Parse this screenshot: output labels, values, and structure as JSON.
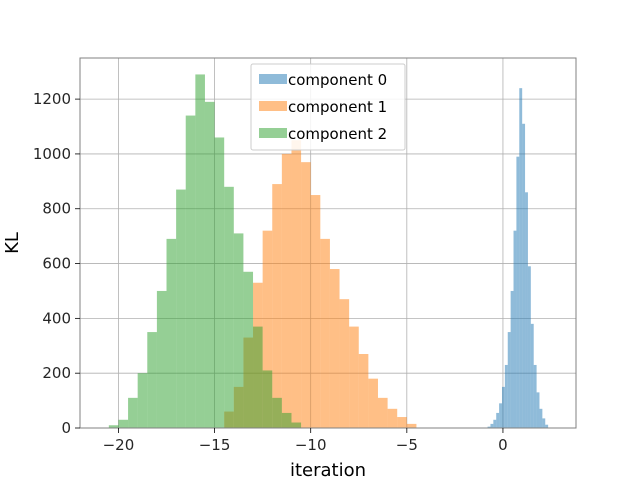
{
  "chart_data": {
    "type": "bar",
    "subtype": "histogram",
    "title": "",
    "xlabel": "iteration",
    "ylabel": "KL",
    "xlim": [
      -22,
      3.8
    ],
    "ylim": [
      0,
      1350
    ],
    "xticks": [
      -20,
      -15,
      -10,
      -5,
      0
    ],
    "yticks": [
      0,
      200,
      400,
      600,
      800,
      1000,
      1200
    ],
    "grid": true,
    "legend_position": "top-center",
    "alpha": 0.5,
    "colors": [
      "#1f77b4",
      "#ff7f0e",
      "#2ca02c"
    ],
    "series": [
      {
        "name": "component 0",
        "bin_width": 0.15,
        "bins": [
          [
            -0.8,
            5
          ],
          [
            -0.65,
            15
          ],
          [
            -0.5,
            30
          ],
          [
            -0.35,
            55
          ],
          [
            -0.2,
            90
          ],
          [
            -0.05,
            150
          ],
          [
            0.1,
            230
          ],
          [
            0.25,
            350
          ],
          [
            0.4,
            500
          ],
          [
            0.55,
            720
          ],
          [
            0.7,
            990
          ],
          [
            0.85,
            1240
          ],
          [
            1.0,
            1110
          ],
          [
            1.15,
            860
          ],
          [
            1.3,
            590
          ],
          [
            1.45,
            380
          ],
          [
            1.6,
            230
          ],
          [
            1.75,
            130
          ],
          [
            1.9,
            70
          ],
          [
            2.05,
            35
          ],
          [
            2.2,
            12
          ]
        ]
      },
      {
        "name": "component 1",
        "bin_width": 0.5,
        "bins": [
          [
            -14.5,
            60
          ],
          [
            -14.0,
            150
          ],
          [
            -13.5,
            330
          ],
          [
            -13.0,
            530
          ],
          [
            -12.5,
            720
          ],
          [
            -12.0,
            890
          ],
          [
            -11.5,
            1000
          ],
          [
            -11.0,
            1050
          ],
          [
            -10.5,
            970
          ],
          [
            -10.0,
            850
          ],
          [
            -9.5,
            690
          ],
          [
            -9.0,
            580
          ],
          [
            -8.5,
            470
          ],
          [
            -8.0,
            370
          ],
          [
            -7.5,
            270
          ],
          [
            -7.0,
            180
          ],
          [
            -6.5,
            110
          ],
          [
            -6.0,
            70
          ],
          [
            -5.5,
            40
          ],
          [
            -5.0,
            15
          ]
        ]
      },
      {
        "name": "component 2",
        "bin_width": 0.5,
        "bins": [
          [
            -20.5,
            10
          ],
          [
            -20.0,
            30
          ],
          [
            -19.5,
            110
          ],
          [
            -19.0,
            200
          ],
          [
            -18.5,
            350
          ],
          [
            -18.0,
            500
          ],
          [
            -17.5,
            690
          ],
          [
            -17.0,
            870
          ],
          [
            -16.5,
            1140
          ],
          [
            -16.0,
            1290
          ],
          [
            -15.5,
            1190
          ],
          [
            -15.0,
            1060
          ],
          [
            -14.5,
            880
          ],
          [
            -14.0,
            710
          ],
          [
            -13.5,
            570
          ],
          [
            -13.0,
            370
          ],
          [
            -12.5,
            210
          ],
          [
            -12.0,
            110
          ],
          [
            -11.5,
            55
          ],
          [
            -11.0,
            20
          ]
        ]
      }
    ]
  }
}
